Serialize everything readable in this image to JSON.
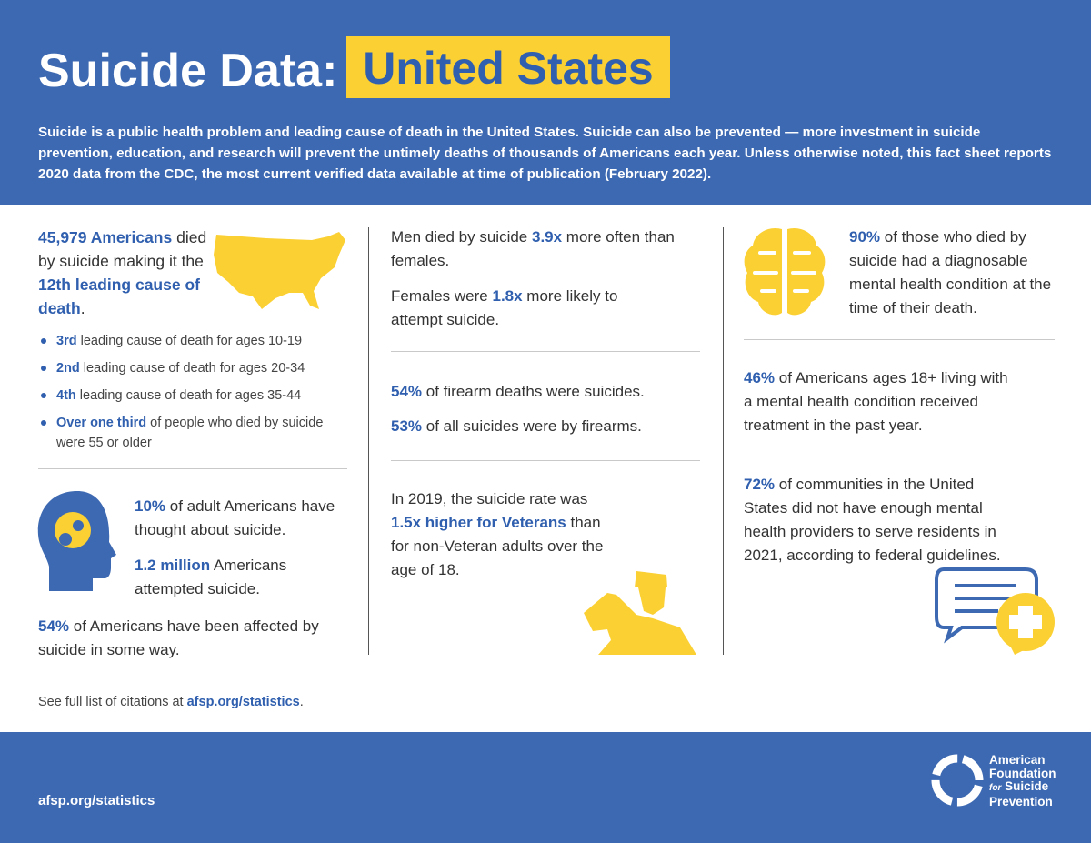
{
  "header": {
    "title": "Suicide Data:",
    "highlight": "United States",
    "intro": "Suicide is a public health problem and leading cause of death in the United States. Suicide can also be prevented — more investment in suicide prevention, education, and research will prevent the untimely deaths of thousands of Americans each year. Unless otherwise noted, this fact sheet reports 2020 data from the CDC, the most current verified data available at time of publication (February 2022)."
  },
  "column1": {
    "stat": [
      "45,979 Americans",
      " died by suicide making it the ",
      "12th leading cause of death",
      "."
    ],
    "bullets": [
      [
        "3rd",
        " leading cause of death for ages 10-19"
      ],
      [
        "2nd",
        " leading cause of death for ages 20-34"
      ],
      [
        "4th",
        " leading cause of death for ages 35-44"
      ],
      [
        "Over one third",
        " of people who died by suicide were 55 or older"
      ]
    ],
    "thoughts": [
      [
        "10%",
        " of adult Americans have thought about suicide."
      ],
      [
        "1.2 million",
        " Americans attempted suicide."
      ]
    ],
    "affected": [
      "54%",
      " of Americans have been affected by suicide in some way."
    ]
  },
  "column2": {
    "men": [
      "Men died by suicide ",
      "3.9x",
      " more often than females."
    ],
    "females": [
      "Females were ",
      "1.8x",
      " more likely to attempt suicide."
    ],
    "firearm": [
      "54%",
      " of firearm deaths were suicides."
    ],
    "firearms_share": [
      "53%",
      " of all suicides were by firearms."
    ],
    "veterans": [
      "In 2019, the suicide rate was ",
      "1.5x higher for Veterans",
      " than for non-Veteran adults over the age of 18."
    ]
  },
  "column3": {
    "mental": [
      "90%",
      " of those who died by suicide had a diagnosable mental health condition at the time of their death."
    ],
    "treatment": [
      "46%",
      " of Americans ages 18+ living with a mental health condition received treatment in the past year."
    ],
    "providers": [
      "72%",
      " of communities in the United States did not have enough mental health providers to serve residents in 2021, according to federal guidelines."
    ]
  },
  "citation": [
    "See full list of citations at ",
    "afsp.org/statistics",
    "."
  ],
  "footer": {
    "url": "afsp.org/statistics",
    "org": [
      "American",
      "Foundation",
      "for",
      "Suicide",
      "Prevention"
    ]
  }
}
